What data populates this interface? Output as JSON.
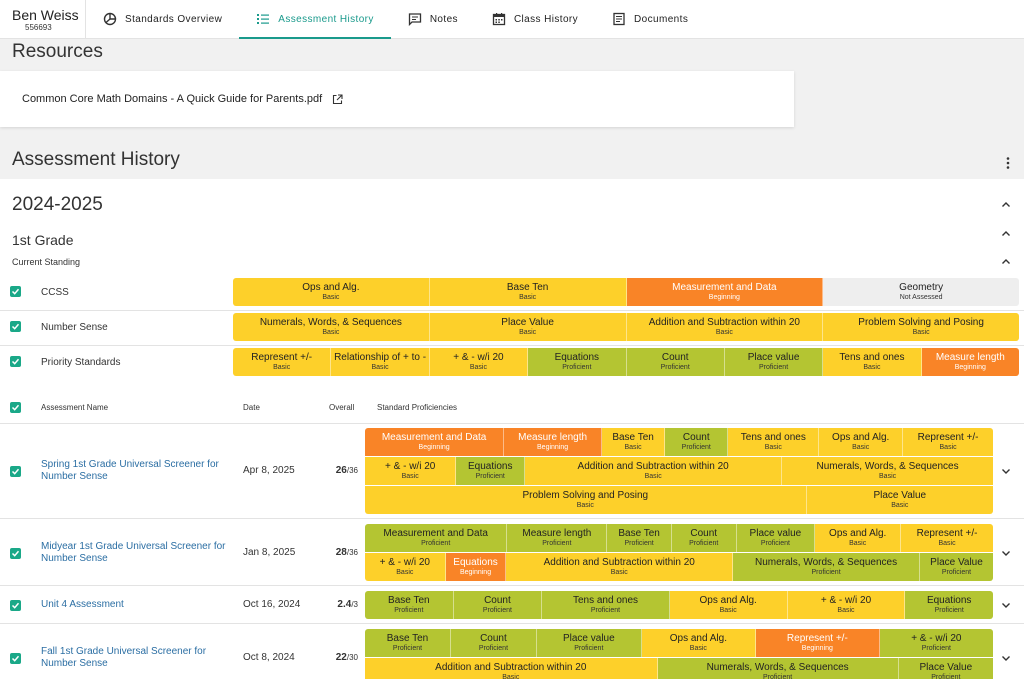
{
  "student": {
    "name": "Ben Weiss",
    "id": "556693"
  },
  "tabs": [
    {
      "label": "Standards Overview",
      "icon": "chart-pie-icon"
    },
    {
      "label": "Assessment History",
      "icon": "list-icon"
    },
    {
      "label": "Notes",
      "icon": "note-icon"
    },
    {
      "label": "Class History",
      "icon": "calendar-icon"
    },
    {
      "label": "Documents",
      "icon": "document-icon"
    }
  ],
  "resources": {
    "title": "Resources",
    "file": "Common Core Math Domains - A Quick Guide for Parents.pdf"
  },
  "history": {
    "title": "Assessment History",
    "year": "2024-2025",
    "grade": "1st Grade",
    "current_standing": "Current Standing"
  },
  "colors": {
    "basic": "#fdd02a",
    "proficient": "#b4c532",
    "beginning": "#f98427",
    "not_assessed": "#eeeeee",
    "accent": "#1a9a8c",
    "link": "#2b6ea3"
  },
  "standing_rows": [
    {
      "label": "CCSS",
      "cells": [
        {
          "name": "Ops and Alg.",
          "level": "Basic"
        },
        {
          "name": "Base Ten",
          "level": "Basic"
        },
        {
          "name": "Measurement and Data",
          "level": "Beginning"
        },
        {
          "name": "Geometry",
          "level": "Not Assessed"
        }
      ]
    },
    {
      "label": "Number Sense",
      "cells": [
        {
          "name": "Numerals, Words, & Sequences",
          "level": "Basic"
        },
        {
          "name": "Place Value",
          "level": "Basic"
        },
        {
          "name": "Addition and Subtraction within 20",
          "level": "Basic"
        },
        {
          "name": "Problem Solving and Posing",
          "level": "Basic"
        }
      ]
    },
    {
      "label": "Priority Standards",
      "cells": [
        {
          "name": "Represent +/-",
          "level": "Basic"
        },
        {
          "name": "Relationship of + to -",
          "level": "Basic"
        },
        {
          "name": "+ & - w/i 20",
          "level": "Basic"
        },
        {
          "name": "Equations",
          "level": "Proficient"
        },
        {
          "name": "Count",
          "level": "Proficient"
        },
        {
          "name": "Place value",
          "level": "Proficient"
        },
        {
          "name": "Tens and ones",
          "level": "Basic"
        },
        {
          "name": "Measure length",
          "level": "Beginning"
        }
      ]
    }
  ],
  "table_headers": {
    "name": "Assessment Name",
    "date": "Date",
    "overall": "Overall",
    "proficiencies": "Standard Proficiencies"
  },
  "assessments": [
    {
      "name": "Spring 1st Grade Universal Screener for Number Sense",
      "date": "Apr 8, 2025",
      "score": "26",
      "total": "/36",
      "rows": [
        [
          {
            "name": "Measurement and Data",
            "level": "Beginning"
          },
          {
            "name": "Measure length",
            "level": "Beginning"
          },
          {
            "name": "Base Ten",
            "level": "Basic"
          },
          {
            "name": "Count",
            "level": "Proficient"
          },
          {
            "name": "Tens and ones",
            "level": "Basic"
          },
          {
            "name": "Ops and Alg.",
            "level": "Basic"
          },
          {
            "name": "Represent +/-",
            "level": "Basic"
          }
        ],
        [
          {
            "name": "+ & - w/i 20",
            "level": "Basic"
          },
          {
            "name": "Equations",
            "level": "Proficient"
          },
          {
            "name": "Addition and Subtraction within 20",
            "level": "Basic"
          },
          {
            "name": "Numerals, Words, & Sequences",
            "level": "Basic"
          }
        ],
        [
          {
            "name": "Problem Solving and Posing",
            "level": "Basic"
          },
          {
            "name": "Place Value",
            "level": "Basic"
          }
        ]
      ]
    },
    {
      "name": "Midyear 1st Grade Universal Screener for Number Sense",
      "date": "Jan 8, 2025",
      "score": "28",
      "total": "/36",
      "rows": [
        [
          {
            "name": "Measurement and Data",
            "level": "Proficient"
          },
          {
            "name": "Measure length",
            "level": "Proficient"
          },
          {
            "name": "Base Ten",
            "level": "Proficient"
          },
          {
            "name": "Count",
            "level": "Proficient"
          },
          {
            "name": "Place value",
            "level": "Proficient"
          },
          {
            "name": "Ops and Alg.",
            "level": "Basic"
          },
          {
            "name": "Represent +/-",
            "level": "Basic"
          }
        ],
        [
          {
            "name": "+ & - w/i 20",
            "level": "Basic"
          },
          {
            "name": "Equations",
            "level": "Beginning"
          },
          {
            "name": "Addition and Subtraction within 20",
            "level": "Basic"
          },
          {
            "name": "Numerals, Words, & Sequences",
            "level": "Proficient"
          },
          {
            "name": "Place Value",
            "level": "Proficient"
          }
        ]
      ]
    },
    {
      "name": "Unit 4 Assessment",
      "date": "Oct 16, 2024",
      "score": "2.4",
      "total": "/3",
      "rows": [
        [
          {
            "name": "Base Ten",
            "level": "Proficient"
          },
          {
            "name": "Count",
            "level": "Proficient"
          },
          {
            "name": "Tens and ones",
            "level": "Proficient"
          },
          {
            "name": "Ops and Alg.",
            "level": "Basic"
          },
          {
            "name": "+ & - w/i 20",
            "level": "Basic"
          },
          {
            "name": "Equations",
            "level": "Proficient"
          }
        ]
      ]
    },
    {
      "name": "Fall 1st Grade Universal Screener for Number Sense",
      "date": "Oct 8, 2024",
      "score": "22",
      "total": "/30",
      "rows": [
        [
          {
            "name": "Base Ten",
            "level": "Proficient"
          },
          {
            "name": "Count",
            "level": "Proficient"
          },
          {
            "name": "Place value",
            "level": "Proficient"
          },
          {
            "name": "Ops and Alg.",
            "level": "Basic"
          },
          {
            "name": "Represent +/-",
            "level": "Beginning"
          },
          {
            "name": "+ & - w/i 20",
            "level": "Proficient"
          }
        ],
        [
          {
            "name": "Addition and Subtraction within 20",
            "level": "Basic"
          },
          {
            "name": "Numerals, Words, & Sequences",
            "level": "Proficient"
          },
          {
            "name": "Place Value",
            "level": "Proficient"
          }
        ]
      ]
    }
  ]
}
